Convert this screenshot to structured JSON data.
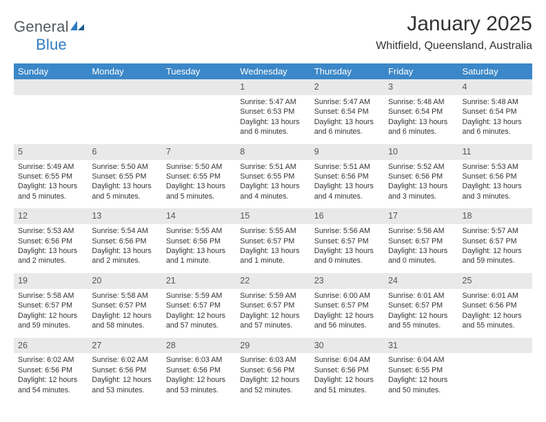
{
  "brand": {
    "name_gray": "General",
    "name_blue": "Blue"
  },
  "title": "January 2025",
  "location": "Whitfield, Queensland, Australia",
  "colors": {
    "header_bg": "#3b87c8",
    "header_text": "#ffffff",
    "daynum_bg": "#e9e9e9",
    "week_rule": "#2f6fa8",
    "body_text": "#333333",
    "logo_gray": "#555b61",
    "logo_blue": "#2f7bbf"
  },
  "fonts": {
    "month_title_pt": 30,
    "location_pt": 16,
    "dayheader_pt": 13,
    "daynum_pt": 12.5,
    "daytext_pt": 10.7
  },
  "day_headers": [
    "Sunday",
    "Monday",
    "Tuesday",
    "Wednesday",
    "Thursday",
    "Friday",
    "Saturday"
  ],
  "weeks": [
    [
      {
        "empty": true
      },
      {
        "empty": true
      },
      {
        "empty": true
      },
      {
        "n": "1",
        "sr": "5:47 AM",
        "ss": "6:53 PM",
        "dl": "13 hours and 6 minutes."
      },
      {
        "n": "2",
        "sr": "5:47 AM",
        "ss": "6:54 PM",
        "dl": "13 hours and 6 minutes."
      },
      {
        "n": "3",
        "sr": "5:48 AM",
        "ss": "6:54 PM",
        "dl": "13 hours and 6 minutes."
      },
      {
        "n": "4",
        "sr": "5:48 AM",
        "ss": "6:54 PM",
        "dl": "13 hours and 6 minutes."
      }
    ],
    [
      {
        "n": "5",
        "sr": "5:49 AM",
        "ss": "6:55 PM",
        "dl": "13 hours and 5 minutes."
      },
      {
        "n": "6",
        "sr": "5:50 AM",
        "ss": "6:55 PM",
        "dl": "13 hours and 5 minutes."
      },
      {
        "n": "7",
        "sr": "5:50 AM",
        "ss": "6:55 PM",
        "dl": "13 hours and 5 minutes."
      },
      {
        "n": "8",
        "sr": "5:51 AM",
        "ss": "6:55 PM",
        "dl": "13 hours and 4 minutes."
      },
      {
        "n": "9",
        "sr": "5:51 AM",
        "ss": "6:56 PM",
        "dl": "13 hours and 4 minutes."
      },
      {
        "n": "10",
        "sr": "5:52 AM",
        "ss": "6:56 PM",
        "dl": "13 hours and 3 minutes."
      },
      {
        "n": "11",
        "sr": "5:53 AM",
        "ss": "6:56 PM",
        "dl": "13 hours and 3 minutes."
      }
    ],
    [
      {
        "n": "12",
        "sr": "5:53 AM",
        "ss": "6:56 PM",
        "dl": "13 hours and 2 minutes."
      },
      {
        "n": "13",
        "sr": "5:54 AM",
        "ss": "6:56 PM",
        "dl": "13 hours and 2 minutes."
      },
      {
        "n": "14",
        "sr": "5:55 AM",
        "ss": "6:56 PM",
        "dl": "13 hours and 1 minute."
      },
      {
        "n": "15",
        "sr": "5:55 AM",
        "ss": "6:57 PM",
        "dl": "13 hours and 1 minute."
      },
      {
        "n": "16",
        "sr": "5:56 AM",
        "ss": "6:57 PM",
        "dl": "13 hours and 0 minutes."
      },
      {
        "n": "17",
        "sr": "5:56 AM",
        "ss": "6:57 PM",
        "dl": "13 hours and 0 minutes."
      },
      {
        "n": "18",
        "sr": "5:57 AM",
        "ss": "6:57 PM",
        "dl": "12 hours and 59 minutes."
      }
    ],
    [
      {
        "n": "19",
        "sr": "5:58 AM",
        "ss": "6:57 PM",
        "dl": "12 hours and 59 minutes."
      },
      {
        "n": "20",
        "sr": "5:58 AM",
        "ss": "6:57 PM",
        "dl": "12 hours and 58 minutes."
      },
      {
        "n": "21",
        "sr": "5:59 AM",
        "ss": "6:57 PM",
        "dl": "12 hours and 57 minutes."
      },
      {
        "n": "22",
        "sr": "5:59 AM",
        "ss": "6:57 PM",
        "dl": "12 hours and 57 minutes."
      },
      {
        "n": "23",
        "sr": "6:00 AM",
        "ss": "6:57 PM",
        "dl": "12 hours and 56 minutes."
      },
      {
        "n": "24",
        "sr": "6:01 AM",
        "ss": "6:57 PM",
        "dl": "12 hours and 55 minutes."
      },
      {
        "n": "25",
        "sr": "6:01 AM",
        "ss": "6:56 PM",
        "dl": "12 hours and 55 minutes."
      }
    ],
    [
      {
        "n": "26",
        "sr": "6:02 AM",
        "ss": "6:56 PM",
        "dl": "12 hours and 54 minutes."
      },
      {
        "n": "27",
        "sr": "6:02 AM",
        "ss": "6:56 PM",
        "dl": "12 hours and 53 minutes."
      },
      {
        "n": "28",
        "sr": "6:03 AM",
        "ss": "6:56 PM",
        "dl": "12 hours and 53 minutes."
      },
      {
        "n": "29",
        "sr": "6:03 AM",
        "ss": "6:56 PM",
        "dl": "12 hours and 52 minutes."
      },
      {
        "n": "30",
        "sr": "6:04 AM",
        "ss": "6:56 PM",
        "dl": "12 hours and 51 minutes."
      },
      {
        "n": "31",
        "sr": "6:04 AM",
        "ss": "6:55 PM",
        "dl": "12 hours and 50 minutes."
      },
      {
        "empty": true
      }
    ]
  ],
  "labels": {
    "sunrise": "Sunrise:",
    "sunset": "Sunset:",
    "daylight": "Daylight:"
  }
}
